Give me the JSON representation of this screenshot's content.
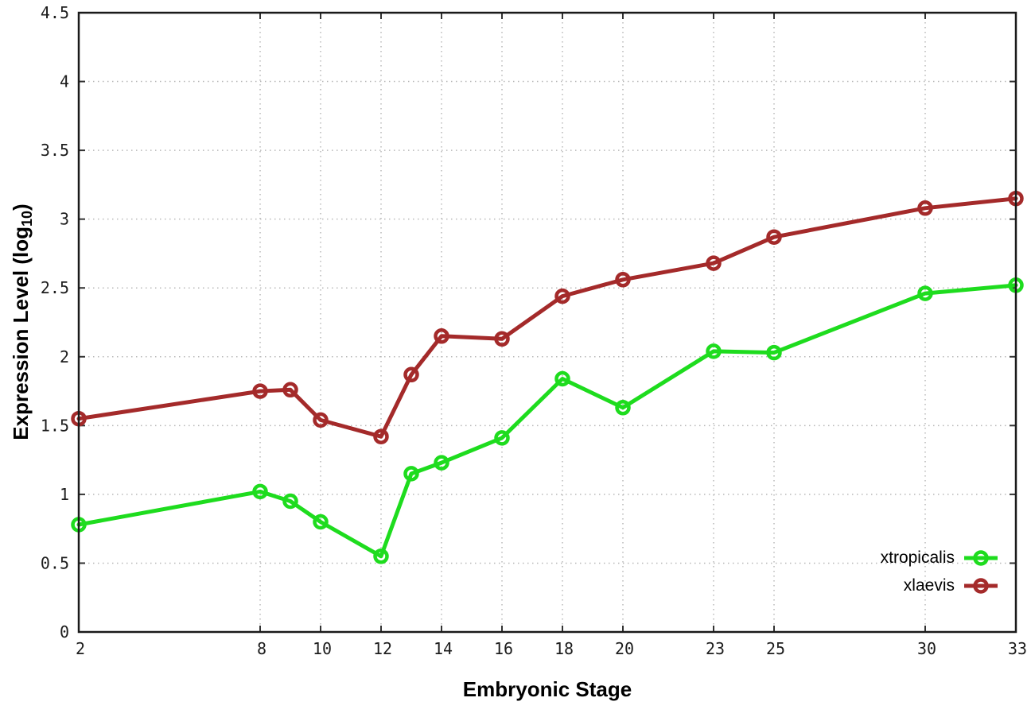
{
  "chart_data": {
    "type": "line",
    "title": "",
    "xlabel": "Embryonic Stage",
    "ylabel": "Expression Level (log10)",
    "ylabel_parts": {
      "main": "Expression Level (log",
      "sub": "10",
      "close": ")"
    },
    "x": [
      2,
      8,
      9,
      10,
      12,
      13,
      14,
      16,
      18,
      20,
      23,
      25,
      30,
      33
    ],
    "x_ticks": [
      2,
      8,
      10,
      12,
      14,
      16,
      18,
      20,
      23,
      25,
      30,
      33
    ],
    "y_ticks": [
      0,
      0.5,
      1,
      1.5,
      2,
      2.5,
      3,
      3.5,
      4,
      4.5
    ],
    "xlim": [
      2,
      33
    ],
    "ylim": [
      0,
      4.5
    ],
    "grid": true,
    "grid_style": "dotted",
    "legend_position": "bottom-right",
    "series": [
      {
        "name": "xtropicalis",
        "color": "#1edc1e",
        "marker": "open-circle",
        "values": [
          0.78,
          1.02,
          0.95,
          0.8,
          0.55,
          1.15,
          1.23,
          1.41,
          1.84,
          1.63,
          2.04,
          2.03,
          2.46,
          2.52
        ]
      },
      {
        "name": "xlaevis",
        "color": "#a42a2a",
        "marker": "open-circle",
        "values": [
          1.55,
          1.75,
          1.76,
          1.54,
          1.42,
          1.87,
          2.15,
          2.13,
          2.44,
          2.56,
          2.68,
          2.87,
          3.08,
          3.15
        ]
      }
    ]
  },
  "colors": {
    "background": "#ffffff",
    "border": "#1a1a1a",
    "grid": "#b8b8b8",
    "tick": "#333333",
    "text": "#000000"
  }
}
